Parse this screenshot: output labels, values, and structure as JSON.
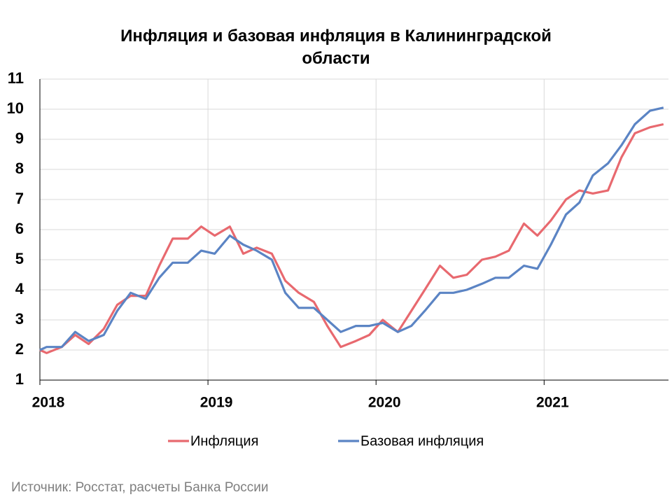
{
  "chart_data": {
    "type": "line",
    "title": "Инфляция и базовая инфляция в Калининградской области",
    "source": "Источник: Росстат, расчеты Банка России",
    "x": [
      2018,
      2018.04,
      2018.13,
      2018.21,
      2018.29,
      2018.38,
      2018.46,
      2018.54,
      2018.63,
      2018.71,
      2018.79,
      2018.88,
      2018.96,
      2019.04,
      2019.13,
      2019.21,
      2019.29,
      2019.38,
      2019.46,
      2019.54,
      2019.63,
      2019.71,
      2019.79,
      2019.88,
      2019.96,
      2020.04,
      2020.13,
      2020.21,
      2020.29,
      2020.38,
      2020.46,
      2020.54,
      2020.63,
      2020.71,
      2020.79,
      2020.88,
      2020.96,
      2021.04,
      2021.13,
      2021.21,
      2021.29,
      2021.38,
      2021.46,
      2021.54,
      2021.63,
      2021.71
    ],
    "series": [
      {
        "name": "Инфляция",
        "color": "#e8696f",
        "values": [
          2.0,
          1.9,
          2.1,
          2.5,
          2.2,
          2.7,
          3.5,
          3.8,
          3.8,
          4.8,
          5.7,
          5.7,
          6.1,
          5.8,
          6.1,
          5.2,
          5.4,
          5.2,
          4.3,
          3.9,
          3.6,
          2.8,
          2.1,
          2.3,
          2.5,
          3.0,
          2.6,
          3.3,
          4.0,
          4.8,
          4.4,
          4.5,
          5.0,
          5.1,
          5.3,
          6.2,
          5.8,
          6.3,
          7.0,
          7.3,
          7.2,
          7.3,
          8.4,
          9.2,
          9.4,
          9.5
        ]
      },
      {
        "name": "Базовая инфляция",
        "color": "#5b84c4",
        "values": [
          2.0,
          2.1,
          2.1,
          2.6,
          2.3,
          2.5,
          3.3,
          3.9,
          3.7,
          4.4,
          4.9,
          4.9,
          5.3,
          5.2,
          5.8,
          5.5,
          5.3,
          5.0,
          3.9,
          3.4,
          3.4,
          3.0,
          2.6,
          2.8,
          2.8,
          2.9,
          2.6,
          2.8,
          3.3,
          3.9,
          3.9,
          4.0,
          4.2,
          4.4,
          4.4,
          4.8,
          4.7,
          5.5,
          6.5,
          6.9,
          7.8,
          8.2,
          8.8,
          9.5,
          9.95,
          10.05
        ]
      }
    ],
    "xlim": [
      2018,
      2021.74
    ],
    "xticks": [
      2018,
      2019,
      2020,
      2021
    ],
    "ylim": [
      1,
      11
    ],
    "yticks": [
      1,
      2,
      3,
      4,
      5,
      6,
      7,
      8,
      9,
      10,
      11
    ],
    "grid": true,
    "legend": "bottom"
  }
}
